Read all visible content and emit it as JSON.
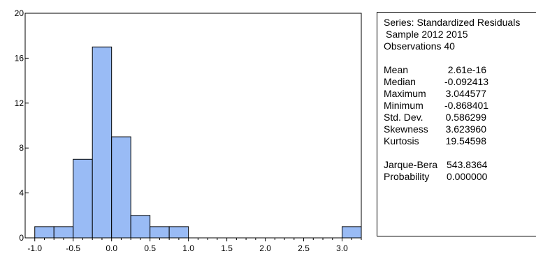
{
  "chart_data": {
    "type": "bar",
    "title": "",
    "xlabel": "",
    "ylabel": "",
    "xlim": [
      -1.125,
      3.25
    ],
    "ylim": [
      0,
      20
    ],
    "bin_width": 0.25,
    "bins": [
      {
        "start": -1.0,
        "end": -0.75,
        "count": 1
      },
      {
        "start": -0.75,
        "end": -0.5,
        "count": 1
      },
      {
        "start": -0.5,
        "end": -0.25,
        "count": 7
      },
      {
        "start": -0.25,
        "end": 0.0,
        "count": 17
      },
      {
        "start": 0.0,
        "end": 0.25,
        "count": 9
      },
      {
        "start": 0.25,
        "end": 0.5,
        "count": 2
      },
      {
        "start": 0.5,
        "end": 0.75,
        "count": 1
      },
      {
        "start": 0.75,
        "end": 1.0,
        "count": 1
      },
      {
        "start": 3.0,
        "end": 3.25,
        "count": 1
      }
    ],
    "x_ticks": [
      -1.0,
      -0.5,
      0.0,
      0.5,
      1.0,
      1.5,
      2.0,
      2.5,
      3.0
    ],
    "x_tick_labels": [
      "-1.0",
      "-0.5",
      "0.0",
      "0.5",
      "1.0",
      "1.5",
      "2.0",
      "2.5",
      "3.0"
    ],
    "y_ticks": [
      0,
      4,
      8,
      12,
      16,
      20
    ],
    "y_tick_labels": [
      "0",
      "4",
      "8",
      "12",
      "16",
      "20"
    ],
    "colors": {
      "bar_fill": "#99bbf5",
      "bar_stroke": "#000000"
    },
    "grid": false
  },
  "stats": {
    "series": "Series: Standardized Residuals",
    "sample": "Sample 2012 2015",
    "observations": "Observations 40",
    "rows": [
      {
        "label": "Mean",
        "value": "2.61e-16"
      },
      {
        "label": "Median",
        "value": "-0.092413"
      },
      {
        "label": "Maximum",
        "value": "3.044577"
      },
      {
        "label": "Minimum",
        "value": "-0.868401"
      },
      {
        "label": "Std. Dev.",
        "value": "0.586299"
      },
      {
        "label": "Skewness",
        "value": "3.623960"
      },
      {
        "label": "Kurtosis",
        "value": "19.54598"
      }
    ],
    "tests": [
      {
        "label": "Jarque-Bera",
        "value": "543.8364"
      },
      {
        "label": "Probability",
        "value": "0.000000"
      }
    ]
  }
}
